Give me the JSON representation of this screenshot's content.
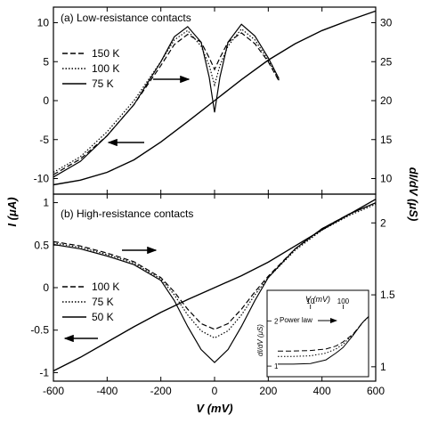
{
  "xlabel": "V (mV)",
  "ylabel_left": "I (μA)",
  "ylabel_right": "dI/dV (μS)",
  "chart_data": [
    {
      "type": "line",
      "panel": "a",
      "title": "(a) Low-resistance contacts",
      "xlim": [
        -600,
        600
      ],
      "ylim_left": [
        -12,
        12
      ],
      "ylim_right": [
        8,
        32
      ],
      "x_ticks": [
        -600,
        -400,
        -200,
        0,
        200,
        400,
        600
      ],
      "y_ticks_left": [
        -10,
        -5,
        0,
        5,
        10
      ],
      "y_ticks_right": [
        10,
        15,
        20,
        25,
        30
      ],
      "legend": [
        "150 K",
        "100 K",
        "75 K"
      ],
      "arrow_labels": [
        "→ right axis (dI/dV)",
        "← left axis (I)"
      ],
      "iv_curve": {
        "x": [
          -600,
          -500,
          -400,
          -300,
          -200,
          -100,
          0,
          100,
          200,
          300,
          400,
          500,
          600
        ],
        "y": [
          -10.8,
          -10.2,
          -9.2,
          -7.6,
          -5.3,
          -2.7,
          0,
          2.7,
          5.2,
          7.3,
          9.0,
          10.3,
          11.5
        ]
      },
      "didv_series": [
        {
          "name": "150 K",
          "x": [
            -600,
            -500,
            -400,
            -300,
            -200,
            -150,
            -100,
            -50,
            -20,
            0,
            20,
            50,
            100,
            150,
            200,
            240
          ],
          "y": [
            10.5,
            12.5,
            15.5,
            19.5,
            24.5,
            27.2,
            28.5,
            27.5,
            25.5,
            24.0,
            25.5,
            27.5,
            28.7,
            27.3,
            25.0,
            22.5
          ]
        },
        {
          "name": "100 K",
          "x": [
            -600,
            -500,
            -400,
            -300,
            -200,
            -150,
            -100,
            -50,
            -20,
            0,
            20,
            50,
            100,
            150,
            200,
            240
          ],
          "y": [
            10.8,
            12.8,
            16.0,
            20.0,
            25.0,
            27.8,
            29.0,
            27.0,
            24.5,
            22.0,
            24.5,
            27.0,
            29.2,
            27.8,
            25.2,
            22.6
          ]
        },
        {
          "name": "75 K",
          "x": [
            -600,
            -500,
            -400,
            -300,
            -200,
            -150,
            -100,
            -50,
            -20,
            0,
            20,
            50,
            100,
            150,
            200,
            240
          ],
          "y": [
            10.2,
            12.2,
            15.5,
            19.5,
            25.0,
            28.2,
            29.5,
            27.5,
            23.0,
            18.5,
            23.0,
            27.5,
            29.8,
            28.3,
            25.5,
            22.8
          ]
        }
      ]
    },
    {
      "type": "line",
      "panel": "b",
      "title": "(b) High-resistance contacts",
      "xlim": [
        -600,
        600
      ],
      "ylim_left": [
        -1.1,
        1.1
      ],
      "ylim_right": [
        0.9,
        2.2
      ],
      "x_ticks": [
        -600,
        -400,
        -200,
        0,
        200,
        400,
        600
      ],
      "y_ticks_left": [
        -1.0,
        -0.5,
        0,
        0.5,
        1.0
      ],
      "y_ticks_right": [
        1.0,
        1.5,
        2.0
      ],
      "legend": [
        "100 K",
        "75 K",
        "50 K"
      ],
      "arrow_labels": [
        "→ right axis (dI/dV)",
        "← left axis (I)"
      ],
      "iv_curve": {
        "x": [
          -600,
          -500,
          -400,
          -300,
          -200,
          -100,
          0,
          100,
          200,
          300,
          400,
          500,
          600
        ],
        "y": [
          -0.98,
          -0.82,
          -0.64,
          -0.46,
          -0.29,
          -0.14,
          0,
          0.14,
          0.3,
          0.49,
          0.68,
          0.86,
          1.04
        ]
      },
      "didv_series": [
        {
          "name": "100 K",
          "x": [
            -600,
            -500,
            -400,
            -300,
            -200,
            -150,
            -100,
            -50,
            0,
            50,
            100,
            150,
            200,
            300,
            400,
            500,
            600
          ],
          "y": [
            1.87,
            1.84,
            1.79,
            1.73,
            1.62,
            1.52,
            1.4,
            1.3,
            1.26,
            1.3,
            1.4,
            1.52,
            1.63,
            1.82,
            1.96,
            2.06,
            2.14
          ]
        },
        {
          "name": "75 K",
          "x": [
            -600,
            -500,
            -400,
            -300,
            -200,
            -150,
            -100,
            -50,
            0,
            50,
            100,
            150,
            200,
            300,
            400,
            500,
            600
          ],
          "y": [
            1.86,
            1.83,
            1.78,
            1.72,
            1.61,
            1.5,
            1.36,
            1.25,
            1.2,
            1.25,
            1.36,
            1.5,
            1.62,
            1.81,
            1.95,
            2.05,
            2.13
          ]
        },
        {
          "name": "50 K",
          "x": [
            -600,
            -500,
            -400,
            -300,
            -200,
            -150,
            -100,
            -50,
            0,
            50,
            100,
            150,
            200,
            300,
            400,
            500,
            600
          ],
          "y": [
            1.85,
            1.82,
            1.77,
            1.71,
            1.6,
            1.46,
            1.28,
            1.12,
            1.03,
            1.12,
            1.28,
            1.46,
            1.62,
            1.82,
            1.96,
            2.06,
            2.14
          ]
        }
      ],
      "inset": {
        "type": "line",
        "xlabel": "V (mV)",
        "ylabel": "dI/dV (μS)",
        "x_scale": "log",
        "y_scale": "log",
        "x_ticks": [
          10,
          100
        ],
        "x_tick_labels": [
          "10",
          "100"
        ],
        "y_ticks": [
          1,
          2
        ],
        "y_tick_labels": [
          "1",
          "2"
        ],
        "annotation": "Power law",
        "xlim": [
          1,
          600
        ],
        "ylim": [
          0.85,
          2.5
        ],
        "series": [
          {
            "name": "100 K",
            "x": [
              1,
              3,
              10,
              30,
              60,
              100,
              200,
              400,
              600
            ],
            "y": [
              1.26,
              1.26,
              1.27,
              1.3,
              1.36,
              1.45,
              1.63,
              1.96,
              2.14
            ]
          },
          {
            "name": "75 K",
            "x": [
              1,
              3,
              10,
              30,
              60,
              100,
              200,
              400,
              600
            ],
            "y": [
              1.16,
              1.16,
              1.17,
              1.22,
              1.3,
              1.4,
              1.62,
              1.95,
              2.13
            ]
          },
          {
            "name": "50 K",
            "x": [
              1,
              3,
              10,
              30,
              60,
              100,
              200,
              400,
              600
            ],
            "y": [
              1.03,
              1.03,
              1.04,
              1.1,
              1.22,
              1.33,
              1.6,
              1.96,
              2.14
            ]
          }
        ]
      }
    }
  ]
}
